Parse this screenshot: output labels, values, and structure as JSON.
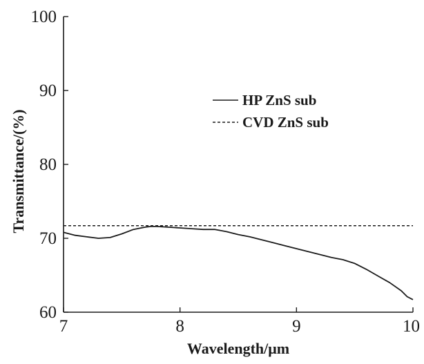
{
  "chart_data": {
    "type": "line",
    "title": "",
    "xlabel": "Wavelength/μm",
    "ylabel": "Transmittance/(%)",
    "xlim": [
      7,
      10
    ],
    "ylim": [
      60,
      100
    ],
    "x_ticks": [
      "7",
      "8",
      "9",
      "10"
    ],
    "y_ticks": [
      "60",
      "70",
      "80",
      "90",
      "100"
    ],
    "grid": false,
    "legend_position": "top-right",
    "series": [
      {
        "name": "HP ZnS sub",
        "style": "solid",
        "color": "#1a1a1a",
        "x": [
          7.0,
          7.1,
          7.2,
          7.3,
          7.4,
          7.5,
          7.6,
          7.7,
          7.75,
          7.8,
          7.9,
          8.0,
          8.1,
          8.2,
          8.3,
          8.4,
          8.5,
          8.6,
          8.7,
          8.8,
          8.9,
          9.0,
          9.1,
          9.2,
          9.3,
          9.4,
          9.5,
          9.6,
          9.7,
          9.8,
          9.9,
          9.95,
          10.0
        ],
        "y": [
          70.8,
          70.4,
          70.2,
          70.0,
          70.1,
          70.6,
          71.2,
          71.5,
          71.6,
          71.6,
          71.5,
          71.4,
          71.3,
          71.2,
          71.2,
          70.9,
          70.5,
          70.2,
          69.8,
          69.4,
          69.0,
          68.6,
          68.2,
          67.8,
          67.4,
          67.1,
          66.6,
          65.8,
          64.9,
          64.0,
          62.9,
          62.1,
          61.7
        ]
      },
      {
        "name": "CVD ZnS sub",
        "style": "dashed",
        "color": "#1a1a1a",
        "x": [
          7.0,
          10.0
        ],
        "y": [
          71.7,
          71.7
        ]
      }
    ]
  }
}
